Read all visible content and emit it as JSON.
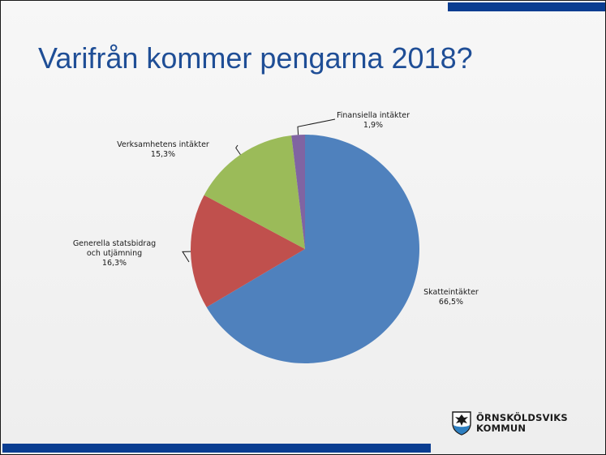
{
  "slide": {
    "title": "Varifrån kommer pengarna 2018?",
    "accent_color": "#0a3d91"
  },
  "logo": {
    "line1": "ÖRNSKÖLDSVIKS",
    "line2": "KOMMUN",
    "icon": "municipal-coat-of-arms-icon"
  },
  "chart_data": {
    "type": "pie",
    "start_angle_deg": 0,
    "direction": "clockwise",
    "slices": [
      {
        "label_lines": [
          "Skatteintäkter"
        ],
        "value_label": "66,5%",
        "value": 66.5,
        "color": "#4f81bd"
      },
      {
        "label_lines": [
          "Generella statsbidrag",
          "och utjämning"
        ],
        "value_label": "16,3%",
        "value": 16.3,
        "color": "#c0504d"
      },
      {
        "label_lines": [
          "Verksamhetens intäkter"
        ],
        "value_label": "15,3%",
        "value": 15.3,
        "color": "#9bbb59"
      },
      {
        "label_lines": [
          "Finansiella intäkter"
        ],
        "value_label": "1,9%",
        "value": 1.9,
        "color": "#8064a2"
      }
    ]
  }
}
